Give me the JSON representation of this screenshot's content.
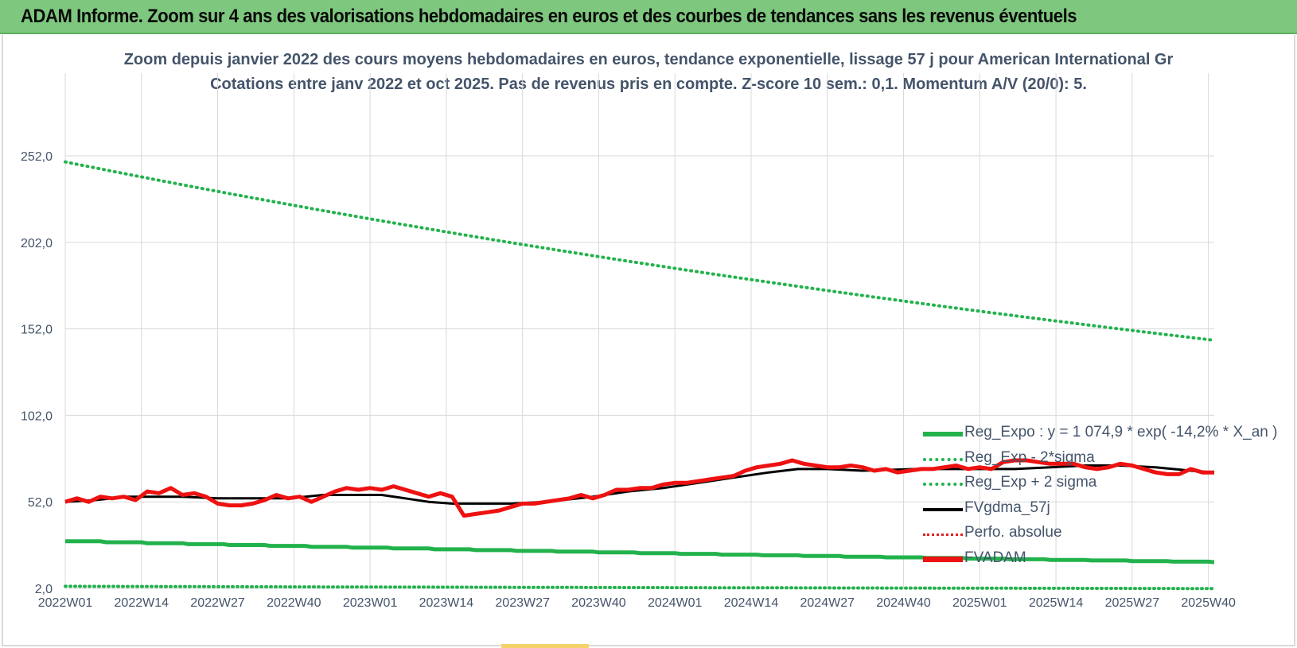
{
  "header": {
    "title": "ADAM Informe. Zoom sur 4 ans des valorisations hebdomadaires en euros et des courbes de tendances sans les revenus éventuels"
  },
  "colors": {
    "header_bg": "#7ec77e",
    "trend_green": "#22b24c",
    "price_red": "#ee1111",
    "smooth_black": "#000000",
    "perf_red": "#e02020",
    "grid": "#d9d9d9",
    "title_text": "#44546a"
  },
  "chart_data": {
    "type": "line",
    "title_line1": "Zoom depuis janvier 2022 des cours moyens hebdomadaires en euros, tendance exponentielle, lissage 57 j pour American International Gr",
    "title_line2": "Cotations entre janv 2022 et oct 2025. Pas de revenus pris en compte. Z-score 10 sem.: 0,1. Momentum A/V (20/0): 5.",
    "x_tick_labels": [
      "2022W01",
      "2022W14",
      "2022W27",
      "2022W40",
      "2023W01",
      "2023W14",
      "2023W27",
      "2023W40",
      "2024W01",
      "2024W14",
      "2024W27",
      "2024W40",
      "2025W01",
      "2025W14",
      "2025W27",
      "2025W40"
    ],
    "y_tick_labels": [
      "2,0",
      "52,0",
      "102,0",
      "152,0",
      "202,0",
      "252,0"
    ],
    "ylim": [
      2,
      296
    ],
    "n_weeks": 197,
    "legend": [
      {
        "name": "Reg_Expo : y = 1 074,9 * exp( -14,2% *  X_an )",
        "style": "solid-green"
      },
      {
        "name": "Reg_Exp - 2*sigma",
        "style": "dot-green"
      },
      {
        "name": "Reg_Exp + 2 sigma",
        "style": "dot-green"
      },
      {
        "name": "FVgdma_57j",
        "style": "solid-black"
      },
      {
        "name": "Perfo. absolue",
        "style": "dot-red"
      },
      {
        "name": "FVADAM",
        "style": "solid-red"
      }
    ],
    "series": {
      "reg_expo": {
        "start": 29.2,
        "end": 17.1
      },
      "reg_minus_2sigma": {
        "start": 3.2,
        "end": 1.9
      },
      "reg_plus_2sigma": {
        "start": 248.5,
        "end": 145.4
      },
      "fvgdma_57j": {
        "weeks": [
          0,
          5,
          8,
          10,
          20,
          26,
          32,
          38,
          44,
          50,
          54,
          58,
          62,
          66,
          70,
          76,
          82,
          90,
          96,
          102,
          108,
          114,
          120,
          125,
          130,
          136,
          145,
          150,
          156,
          162,
          168,
          174,
          180,
          186,
          192,
          196
        ],
        "values": [
          52,
          53,
          54,
          55,
          55,
          54,
          54,
          54,
          56,
          56,
          56,
          54,
          52,
          51,
          51,
          51,
          52,
          55,
          58,
          60,
          63,
          66,
          69,
          71,
          71,
          70,
          71,
          71,
          71,
          71,
          72,
          73,
          73,
          72,
          70,
          69
        ]
      },
      "fvadam": {
        "weeks": [
          0,
          2,
          4,
          6,
          8,
          10,
          12,
          14,
          16,
          18,
          20,
          22,
          24,
          26,
          28,
          30,
          32,
          34,
          36,
          38,
          40,
          42,
          44,
          46,
          48,
          50,
          52,
          54,
          56,
          58,
          60,
          62,
          64,
          66,
          68,
          70,
          72,
          74,
          76,
          78,
          80,
          82,
          84,
          86,
          88,
          90,
          92,
          94,
          96,
          98,
          100,
          102,
          104,
          106,
          108,
          110,
          112,
          114,
          116,
          118,
          120,
          122,
          124,
          126,
          128,
          130,
          132,
          134,
          136,
          138,
          140,
          142,
          144,
          146,
          148,
          150,
          152,
          154,
          156,
          158,
          160,
          162,
          164,
          166,
          168,
          170,
          172,
          174,
          176,
          178,
          180,
          182,
          184,
          186,
          188,
          190,
          192,
          194,
          196
        ],
        "values": [
          52,
          54,
          52,
          55,
          54,
          55,
          53,
          58,
          57,
          60,
          56,
          57,
          55,
          51,
          50,
          50,
          51,
          53,
          56,
          54,
          55,
          52,
          55,
          58,
          60,
          59,
          60,
          59,
          61,
          59,
          57,
          55,
          57,
          55,
          44,
          45,
          46,
          47,
          49,
          51,
          51,
          52,
          53,
          54,
          56,
          54,
          56,
          59,
          59,
          60,
          60,
          62,
          63,
          63,
          64,
          65,
          66,
          67,
          70,
          72,
          73,
          74,
          76,
          74,
          73,
          72,
          72,
          73,
          72,
          70,
          71,
          69,
          70,
          71,
          71,
          72,
          73,
          71,
          72,
          71,
          75,
          76,
          76,
          75,
          74,
          74,
          74,
          72,
          71,
          72,
          74,
          73,
          71,
          69,
          68,
          68,
          71,
          69,
          69
        ]
      }
    }
  }
}
